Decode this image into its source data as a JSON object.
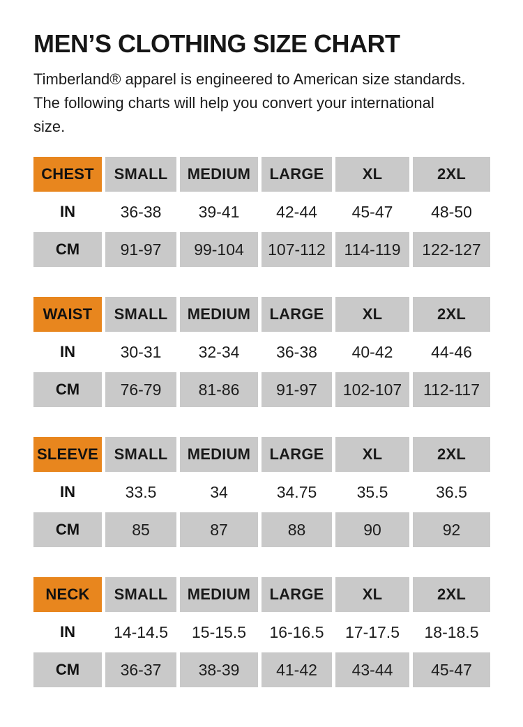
{
  "page": {
    "title": "MEN’S CLOTHING SIZE CHART",
    "intro": "Timberland® apparel is engineered to American size standards. The following charts will help you convert your international size."
  },
  "colors": {
    "accent_orange": "#e8861e",
    "cell_gray": "#c9c9c9",
    "text_black": "#1c1c1c",
    "background": "#ffffff"
  },
  "units": {
    "in": "IN",
    "cm": "CM"
  },
  "size_headers": [
    "SMALL",
    "MEDIUM",
    "LARGE",
    "XL",
    "2XL"
  ],
  "tables": [
    {
      "label": "CHEST",
      "in_values": [
        "36-38",
        "39-41",
        "42-44",
        "45-47",
        "48-50"
      ],
      "cm_values": [
        "91-97",
        "99-104",
        "107-112",
        "114-119",
        "122-127"
      ]
    },
    {
      "label": "WAIST",
      "in_values": [
        "30-31",
        "32-34",
        "36-38",
        "40-42",
        "44-46"
      ],
      "cm_values": [
        "76-79",
        "81-86",
        "91-97",
        "102-107",
        "112-117"
      ]
    },
    {
      "label": "SLEEVE",
      "in_values": [
        "33.5",
        "34",
        "34.75",
        "35.5",
        "36.5"
      ],
      "cm_values": [
        "85",
        "87",
        "88",
        "90",
        "92"
      ]
    },
    {
      "label": "NECK",
      "in_values": [
        "14-14.5",
        "15-15.5",
        "16-16.5",
        "17-17.5",
        "18-18.5"
      ],
      "cm_values": [
        "36-37",
        "38-39",
        "41-42",
        "43-44",
        "45-47"
      ]
    }
  ]
}
